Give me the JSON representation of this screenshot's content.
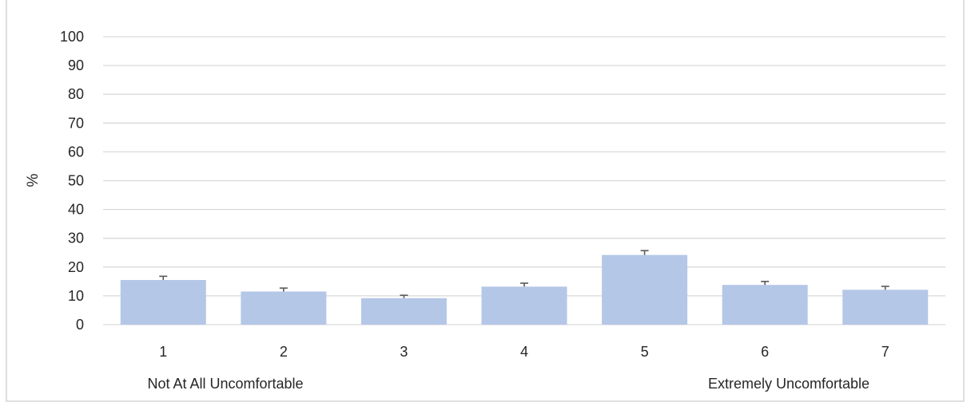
{
  "chart_data": {
    "type": "bar",
    "title": "",
    "xlabel": "",
    "ylabel": "%",
    "ylim": [
      0,
      100
    ],
    "yticks": [
      0,
      10,
      20,
      30,
      40,
      50,
      60,
      70,
      80,
      90,
      100
    ],
    "grid": true,
    "legend": "none",
    "categories": [
      "1",
      "2",
      "3",
      "4",
      "5",
      "6",
      "7"
    ],
    "values": [
      15.5,
      11.5,
      9.2,
      13.2,
      24.2,
      13.8,
      12.1
    ],
    "error": [
      1.3,
      1.2,
      1.0,
      1.2,
      1.5,
      1.2,
      1.2
    ],
    "annotations": {
      "left": "Not At All Uncomfortable",
      "right": "Extremely Uncomfortable"
    },
    "colors": {
      "bar": "#b4c7e7",
      "error_bar": "#595959",
      "grid": "#d9d9d9",
      "border": "#bfbfbf"
    }
  }
}
